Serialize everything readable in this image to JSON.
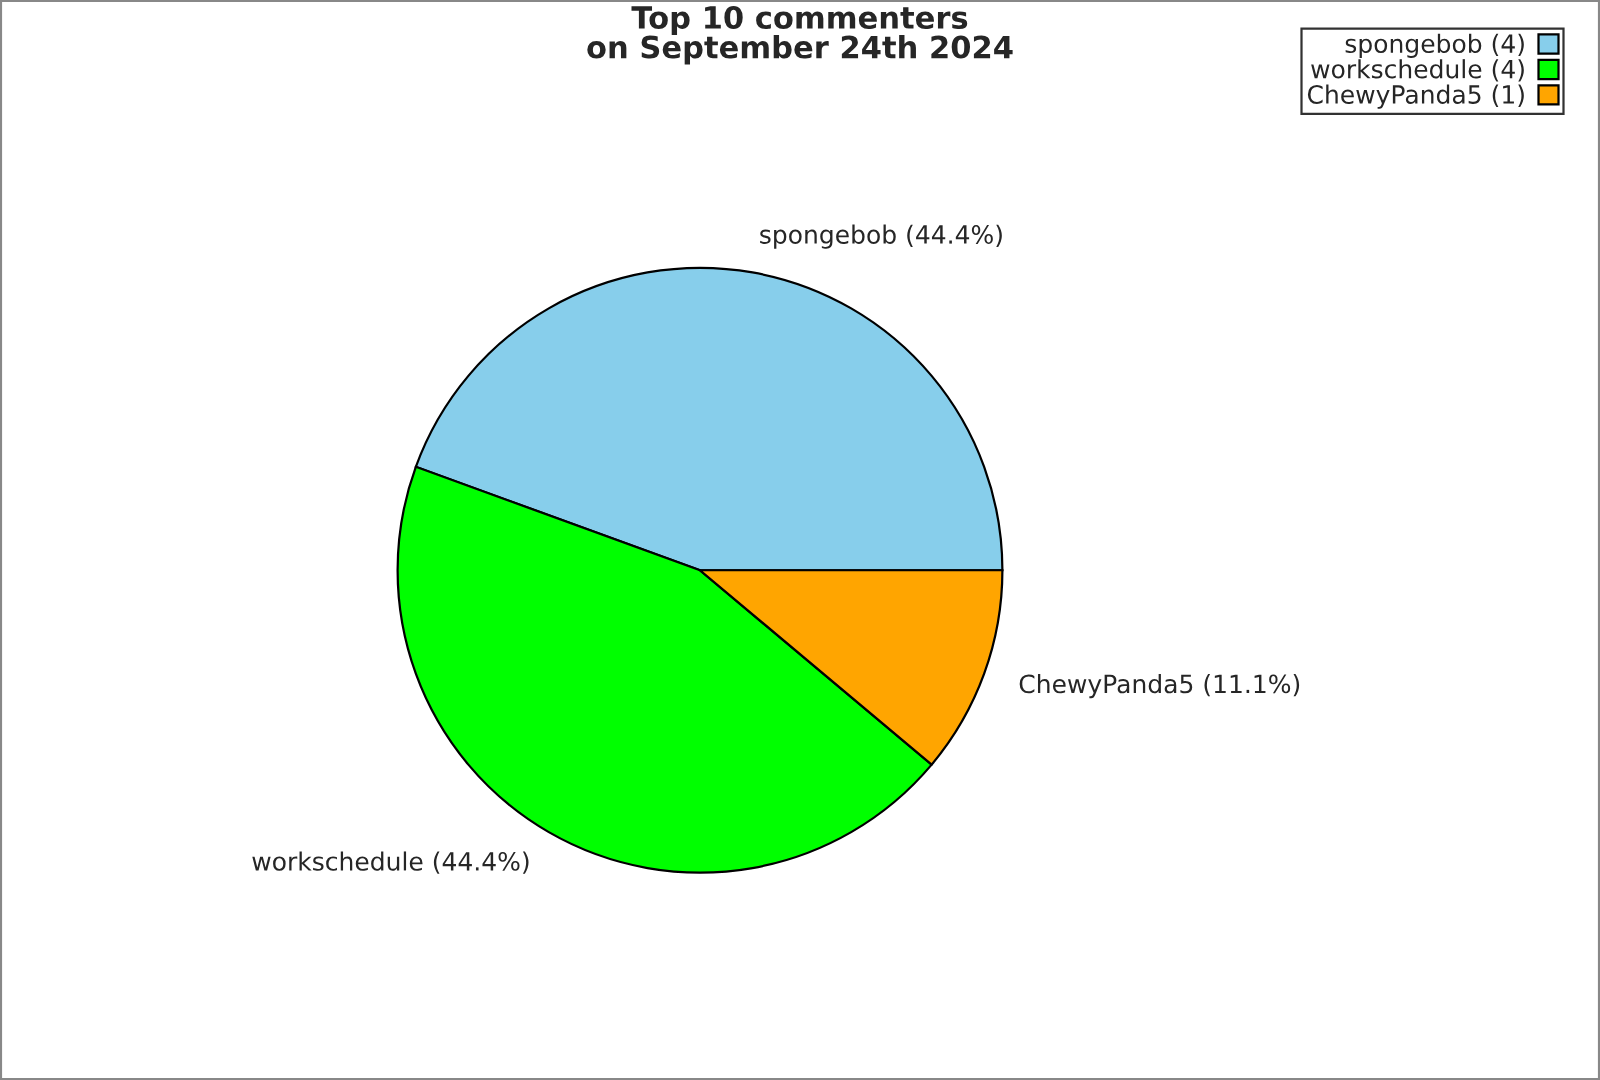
{
  "chart_data": {
    "type": "pie",
    "title": "Top 10 commenters\non September 24th 2024",
    "categories": [
      "spongebob (4)",
      "workschedule (4)",
      "ChewyPanda5 (1)"
    ],
    "values": [
      44.4,
      44.4,
      11.1
    ],
    "value_labels": [
      "spongebob (44.4%)",
      "workschedule (44.4%)",
      "ChewyPanda5 (11.1%)"
    ],
    "colors": [
      "#87ceeb",
      "#00ff00",
      "#ffa500"
    ],
    "legend": "top right"
  }
}
